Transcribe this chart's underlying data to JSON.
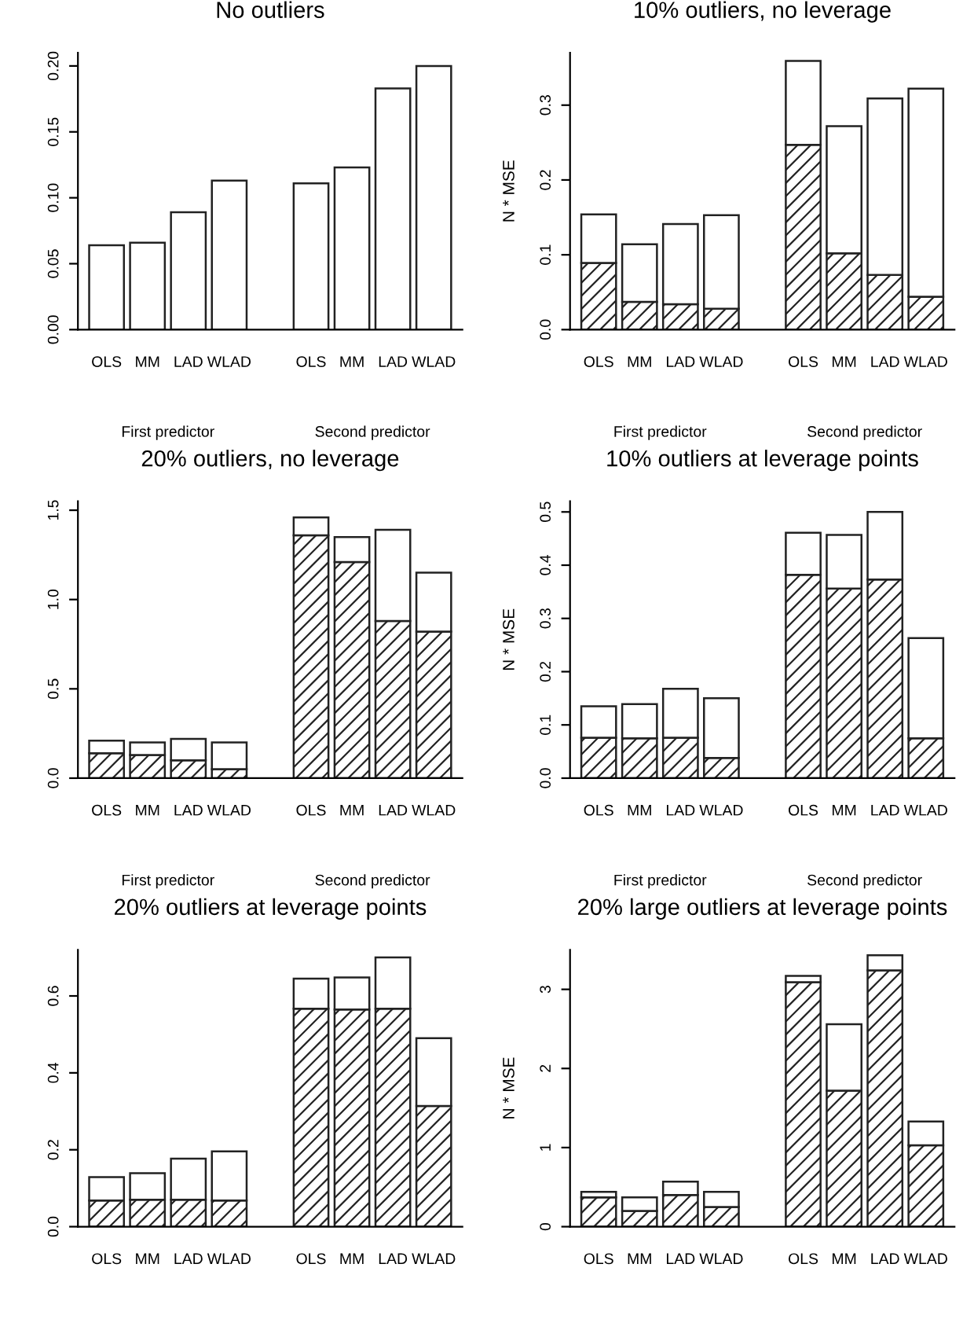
{
  "chart_data": [
    {
      "type": "bar",
      "title": "No outliers",
      "categories": [
        "OLS",
        "MM",
        "LAD",
        "WLAD",
        null,
        "OLS",
        "MM",
        "LAD",
        "WLAD"
      ],
      "series": [
        {
          "color": "#ffffff",
          "values": [
            0.064,
            0.066,
            0.089,
            0.113,
            null,
            0.111,
            0.123,
            0.183,
            0.2
          ]
        }
      ],
      "ylim": [
        0,
        0.21
      ],
      "yticks": [
        {
          "value": 0,
          "label": "0.00"
        },
        {
          "value": 0.05,
          "label": "0.05"
        },
        {
          "value": 0.1,
          "label": "0.10"
        },
        {
          "value": 0.15,
          "label": "0.15"
        },
        {
          "value": 0.2,
          "label": "0.20"
        }
      ],
      "annotations": [
        "First predictor",
        "Second predictor"
      ],
      "grid": false,
      "legend": false
    },
    {
      "type": "bar",
      "title": "10% outliers, no leverage",
      "ylabel": "N * MSE",
      "stacked": true,
      "categories": [
        "OLS",
        "MM",
        "LAD",
        "WLAD",
        null,
        "OLS",
        "MM",
        "LAD",
        "WLAD"
      ],
      "series": [
        {
          "color": "#222222",
          "values": [
            0.089,
            0.037,
            0.034,
            0.028,
            null,
            0.247,
            0.102,
            0.073,
            0.044
          ]
        },
        {
          "color": "#ffffff",
          "values": [
            0.065,
            0.077,
            0.107,
            0.125,
            null,
            0.112,
            0.17,
            0.236,
            0.278
          ]
        }
      ],
      "ylim": [
        0,
        0.37
      ],
      "yticks": [
        {
          "value": 0,
          "label": "0.0"
        },
        0.1,
        0.2,
        0.3
      ],
      "annotations": [
        "First predictor",
        "Second predictor"
      ],
      "grid": false,
      "legend": false
    },
    {
      "type": "bar",
      "title": "20% outliers, no leverage",
      "stacked": true,
      "categories": [
        "OLS",
        "MM",
        "LAD",
        "WLAD",
        null,
        "OLS",
        "MM",
        "LAD",
        "WLAD"
      ],
      "series": [
        {
          "color": "#222222",
          "values": [
            0.14,
            0.13,
            0.1,
            0.05,
            null,
            1.36,
            1.21,
            0.88,
            0.82
          ]
        },
        {
          "color": "#ffffff",
          "values": [
            0.07,
            0.07,
            0.12,
            0.15,
            null,
            0.1,
            0.14,
            0.51,
            0.33
          ]
        }
      ],
      "ylim": [
        0,
        1.55
      ],
      "yticks": [
        {
          "value": 0,
          "label": "0.0"
        },
        0.5,
        {
          "value": 1,
          "label": "1.0"
        },
        1.5
      ],
      "annotations": [
        "First predictor",
        "Second predictor"
      ],
      "grid": false,
      "legend": false
    },
    {
      "type": "bar",
      "title": "10% outliers at leverage points",
      "ylabel": "N * MSE",
      "stacked": true,
      "categories": [
        "OLS",
        "MM",
        "LAD",
        "WLAD",
        null,
        "OLS",
        "MM",
        "LAD",
        "WLAD"
      ],
      "series": [
        {
          "color": "#222222",
          "values": [
            0.076,
            0.075,
            0.076,
            0.038,
            null,
            0.382,
            0.356,
            0.373,
            0.075
          ]
        },
        {
          "color": "#ffffff",
          "values": [
            0.059,
            0.064,
            0.092,
            0.112,
            null,
            0.079,
            0.101,
            0.127,
            0.188
          ]
        }
      ],
      "ylim": [
        0,
        0.52
      ],
      "yticks": [
        {
          "value": 0,
          "label": "0.0"
        },
        0.1,
        0.2,
        0.3,
        0.4,
        0.5
      ],
      "annotations": [
        "First predictor",
        "Second predictor"
      ],
      "grid": false,
      "legend": false
    },
    {
      "type": "bar",
      "title": "20% outliers at leverage points",
      "stacked": true,
      "categories": [
        "OLS",
        "MM",
        "LAD",
        "WLAD",
        null,
        "OLS",
        "MM",
        "LAD",
        "WLAD"
      ],
      "series": [
        {
          "color": "#222222",
          "values": [
            0.068,
            0.07,
            0.07,
            0.068,
            null,
            0.567,
            0.565,
            0.567,
            0.314
          ]
        },
        {
          "color": "#ffffff",
          "values": [
            0.061,
            0.069,
            0.107,
            0.128,
            null,
            0.078,
            0.083,
            0.133,
            0.176
          ]
        }
      ],
      "ylim": [
        0,
        0.72
      ],
      "yticks": [
        {
          "value": 0,
          "label": "0.0"
        },
        0.2,
        0.4,
        0.6
      ],
      "grid": false,
      "legend": false
    },
    {
      "type": "bar",
      "title": "20% large outliers at leverage points",
      "ylabel": "N * MSE",
      "stacked": true,
      "categories": [
        "OLS",
        "MM",
        "LAD",
        "WLAD",
        null,
        "OLS",
        "MM",
        "LAD",
        "WLAD"
      ],
      "series": [
        {
          "color": "#222222",
          "values": [
            0.37,
            0.2,
            0.4,
            0.25,
            null,
            3.09,
            1.72,
            3.24,
            1.03
          ]
        },
        {
          "color": "#ffffff",
          "values": [
            0.07,
            0.17,
            0.17,
            0.19,
            null,
            0.08,
            0.84,
            0.19,
            0.3
          ]
        }
      ],
      "ylim": [
        0,
        3.5
      ],
      "yticks": [
        0,
        1,
        2,
        3
      ],
      "grid": false,
      "legend": false
    }
  ]
}
